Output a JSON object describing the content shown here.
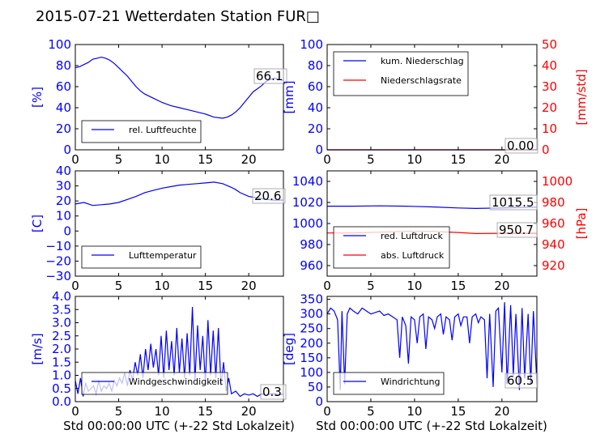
{
  "title": "2015-07-21 Wetterdaten Station FUR□",
  "colors": {
    "primary": "#0000ff",
    "secondary": "#ff0000",
    "axis": "#000000"
  },
  "xlabel": "Std 00:00:00 UTC (+-22 Std Lokalzeit)",
  "chart_data": [
    {
      "type": "line",
      "ylabel": "[%]",
      "ylim": [
        0,
        100
      ],
      "yticks": [
        "0",
        "20",
        "40",
        "60",
        "80",
        "100"
      ],
      "xlim": [
        0,
        24
      ],
      "xticks": [
        "0",
        "5",
        "10",
        "15",
        "20"
      ],
      "legend": "bottom-left",
      "series": [
        {
          "name": "rel. Luftfeuchte",
          "axis": "left",
          "color": "#0000ff",
          "x": [
            0,
            0.5,
            1,
            1.5,
            2,
            2.5,
            3,
            3.5,
            4,
            4.5,
            5,
            5.5,
            6,
            6.5,
            7,
            7.5,
            8,
            9,
            10,
            11,
            12,
            13,
            14,
            15,
            16,
            17,
            17.5,
            18,
            18.5,
            19,
            19.5,
            20,
            20.5,
            21,
            21.5,
            22,
            22.5,
            23,
            23.5,
            24
          ],
          "y": [
            78,
            79,
            81,
            83,
            86,
            87,
            88,
            87,
            85,
            82,
            78,
            74,
            70,
            65,
            60,
            56,
            53,
            49,
            45,
            42,
            40,
            38,
            36,
            34,
            31,
            30,
            31,
            33,
            36,
            40,
            45,
            50,
            55,
            58,
            61,
            65,
            67,
            68,
            67,
            66
          ]
        }
      ],
      "last_value_label": "66.1"
    },
    {
      "type": "line",
      "ylabel": "[mm]",
      "ylabel_right": "[mm/std]",
      "ylim": [
        0,
        100
      ],
      "yticks": [
        "0",
        "20",
        "40",
        "60",
        "80",
        "100"
      ],
      "ylim_right": [
        0,
        50
      ],
      "yticks_right": [
        "0",
        "10",
        "20",
        "30",
        "40",
        "50"
      ],
      "xlim": [
        0,
        24
      ],
      "xticks": [
        "0",
        "5",
        "10",
        "15",
        "20"
      ],
      "legend": "top-left",
      "series": [
        {
          "name": "kum. Niederschlag",
          "axis": "left",
          "color": "#0000ff",
          "x": [
            0,
            24
          ],
          "y": [
            0,
            0
          ]
        },
        {
          "name": "Niederschlagsrate",
          "axis": "right",
          "color": "#ff0000",
          "x": [
            0,
            24
          ],
          "y": [
            0,
            0
          ]
        }
      ],
      "last_value_label": "0.00"
    },
    {
      "type": "line",
      "ylabel": "[C]",
      "ylim": [
        -30,
        40
      ],
      "yticks": [
        "−30",
        "−20",
        "−10",
        "0",
        "10",
        "20",
        "30",
        "40"
      ],
      "xlim": [
        0,
        24
      ],
      "xticks": [
        "0",
        "5",
        "10",
        "15",
        "20"
      ],
      "legend": "bottom-left",
      "series": [
        {
          "name": "Lufttemperatur",
          "axis": "left",
          "color": "#0000ff",
          "x": [
            0,
            1,
            2,
            3,
            4,
            5,
            6,
            7,
            8,
            9,
            10,
            11,
            12,
            13,
            14,
            15,
            16,
            17,
            18,
            18.5,
            19,
            20,
            21,
            22,
            23,
            24
          ],
          "y": [
            18,
            19,
            17,
            17.5,
            18,
            19,
            21,
            23,
            25.5,
            27,
            28.5,
            29.5,
            30.5,
            31,
            31.5,
            32,
            32.5,
            31.5,
            29,
            27.5,
            25.5,
            23,
            22,
            21,
            20.5,
            20.6
          ]
        }
      ],
      "last_value_label": "20.6"
    },
    {
      "type": "line",
      "ylabel_right": "[hPa]",
      "ylim": [
        950,
        1050
      ],
      "yticks": [
        "960",
        "980",
        "1000",
        "1020",
        "1040"
      ],
      "ylim_right": [
        910,
        1010
      ],
      "yticks_right": [
        "920",
        "940",
        "960",
        "980",
        "1000"
      ],
      "xlim": [
        0,
        24
      ],
      "xticks": [
        "0",
        "5",
        "10",
        "15",
        "20"
      ],
      "legend": "bottom-left",
      "series": [
        {
          "name": "red. Luftdruck",
          "axis": "left",
          "color": "#0000ff",
          "x": [
            0,
            3,
            6,
            9,
            12,
            15,
            17,
            20,
            22,
            24
          ],
          "y": [
            1016.5,
            1016.5,
            1016.8,
            1016.5,
            1015.8,
            1014.8,
            1014.3,
            1014.8,
            1015.2,
            1015.5
          ]
        },
        {
          "name": "abs. Luftdruck",
          "axis": "right",
          "color": "#ff0000",
          "x": [
            0,
            3,
            6,
            9,
            12,
            15,
            17,
            20,
            22,
            24
          ],
          "y": [
            951,
            951,
            951.8,
            952.5,
            952.5,
            951.5,
            950.5,
            950.7,
            950.7,
            950.7
          ]
        }
      ],
      "last_value_label_left": "1015.5",
      "last_value_label_right": "950.7"
    },
    {
      "type": "line",
      "ylabel": "[m/s]",
      "ylim": [
        0,
        4.0
      ],
      "yticks": [
        "0.0",
        "0.5",
        "1.0",
        "1.5",
        "2.0",
        "2.5",
        "3.0",
        "3.5",
        "4.0"
      ],
      "xlim": [
        0,
        24
      ],
      "xticks": [
        "0",
        "5",
        "10",
        "15",
        "20"
      ],
      "legend": "bottom-left",
      "series": [
        {
          "name": "Windgeschwindigkeit",
          "axis": "left",
          "color": "#0000ff",
          "x": [
            0,
            0.3,
            0.6,
            0.9,
            1.2,
            1.5,
            1.8,
            2.1,
            2.4,
            2.7,
            3.0,
            3.3,
            3.6,
            3.9,
            4.2,
            4.5,
            4.8,
            5.1,
            5.4,
            5.7,
            6.0,
            6.3,
            6.6,
            6.9,
            7.2,
            7.5,
            7.8,
            8.1,
            8.4,
            8.7,
            9.0,
            9.3,
            9.6,
            9.9,
            10.2,
            10.5,
            10.8,
            11.1,
            11.4,
            11.7,
            12.0,
            12.3,
            12.6,
            12.9,
            13.2,
            13.5,
            13.8,
            14.1,
            14.4,
            14.7,
            15.0,
            15.3,
            15.6,
            15.9,
            16.2,
            16.5,
            16.8,
            17.1,
            17.4,
            17.7,
            18.0,
            18.5,
            19.0,
            19.5,
            20.0,
            20.5,
            21.0,
            21.5,
            22.0,
            22.5,
            23.0,
            23.5,
            24.0
          ],
          "y": [
            0.8,
            0.3,
            0.9,
            0.2,
            0.7,
            0.4,
            0.5,
            0.6,
            0.3,
            0.8,
            0.4,
            0.6,
            0.5,
            0.7,
            0.4,
            0.8,
            0.6,
            0.9,
            0.7,
            1.1,
            0.6,
            1.2,
            0.8,
            1.5,
            1.0,
            1.8,
            0.9,
            2.0,
            1.2,
            2.2,
            1.3,
            2.0,
            1.0,
            2.5,
            0.9,
            2.7,
            1.2,
            2.3,
            1.0,
            2.8,
            1.1,
            2.4,
            0.9,
            2.6,
            1.0,
            3.6,
            0.8,
            2.9,
            1.2,
            2.5,
            0.7,
            3.1,
            1.0,
            2.7,
            0.9,
            2.8,
            0.6,
            1.5,
            0.4,
            0.9,
            0.3,
            0.4,
            0.2,
            0.3,
            0.25,
            0.3,
            0.2,
            0.3,
            0.25,
            0.3,
            0.3,
            0.25,
            0.3
          ]
        }
      ],
      "last_value_label": "0.3"
    },
    {
      "type": "line",
      "ylabel": "[deg]",
      "ylim": [
        0,
        360
      ],
      "yticks": [
        "0",
        "50",
        "100",
        "150",
        "200",
        "250",
        "300",
        "350"
      ],
      "xlim": [
        0,
        24
      ],
      "xticks": [
        "0",
        "5",
        "10",
        "15",
        "20"
      ],
      "legend": "bottom-left",
      "series": [
        {
          "name": "Windrichtung",
          "axis": "left",
          "color": "#0000ff",
          "x": [
            0,
            0.4,
            0.8,
            1.2,
            1.5,
            1.7,
            2.0,
            2.3,
            2.6,
            3.0,
            3.5,
            4.0,
            4.5,
            5.0,
            5.5,
            6.0,
            6.5,
            7.0,
            7.5,
            8.0,
            8.3,
            8.6,
            9.0,
            9.3,
            9.6,
            10.0,
            10.3,
            10.6,
            11.0,
            11.3,
            11.6,
            12.0,
            12.3,
            12.6,
            13.0,
            13.3,
            13.6,
            14.0,
            14.3,
            14.6,
            15.0,
            15.3,
            15.6,
            16.0,
            16.3,
            16.6,
            17.0,
            17.3,
            17.6,
            18.0,
            18.3,
            18.6,
            19.0,
            19.3,
            19.6,
            20.0,
            20.3,
            20.6,
            21.0,
            21.3,
            21.6,
            22.0,
            22.3,
            22.6,
            23.0,
            23.3,
            23.6,
            24.0
          ],
          "y": [
            300,
            320,
            310,
            280,
            40,
            310,
            60,
            300,
            320,
            310,
            300,
            320,
            310,
            300,
            305,
            310,
            295,
            300,
            290,
            280,
            150,
            290,
            260,
            130,
            290,
            280,
            200,
            290,
            300,
            180,
            290,
            280,
            250,
            290,
            300,
            230,
            290,
            280,
            210,
            290,
            300,
            260,
            290,
            290,
            200,
            290,
            300,
            270,
            290,
            280,
            80,
            300,
            50,
            310,
            320,
            100,
            340,
            60,
            330,
            90,
            300,
            40,
            320,
            80,
            300,
            60,
            310,
            60
          ]
        }
      ],
      "last_value_label": "60.5"
    }
  ]
}
